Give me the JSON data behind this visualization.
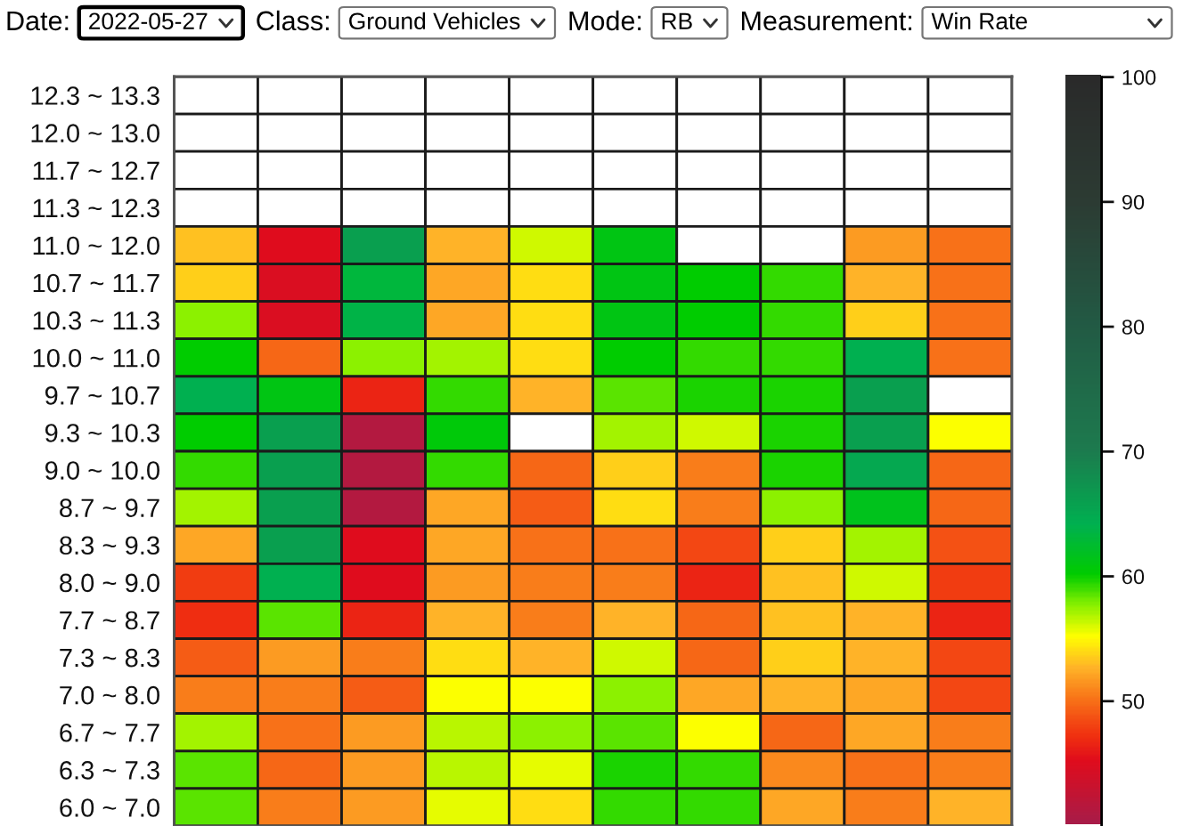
{
  "chart_data": {
    "type": "heatmap",
    "annotations": [
      "Date:",
      "2022-05-27",
      "Class:",
      "Ground Vehicles",
      "Mode:",
      "RB",
      "Measurement:",
      "Win Rate"
    ],
    "categories": [
      null,
      null,
      null,
      null,
      null,
      null,
      null,
      null,
      null,
      null
    ],
    "y_categories": [
      "12.3 ~ 13.3",
      "12.0 ~ 13.0",
      "11.7 ~ 12.7",
      "11.3 ~ 12.3",
      "11.0 ~ 12.0",
      "10.7 ~ 11.7",
      "10.3 ~ 11.3",
      "10.0 ~ 11.0",
      "9.7 ~ 10.7",
      "9.3 ~ 10.3",
      "9.0 ~ 10.0",
      "8.7 ~ 9.7",
      "8.3 ~ 9.3",
      "8.0 ~ 9.0",
      "7.7 ~ 8.7",
      "7.3 ~ 8.3",
      "7.0 ~ 8.0",
      "6.7 ~ 7.7",
      "6.3 ~ 7.3",
      "6.0 ~ 7.0"
    ],
    "cells": [
      [
        null,
        null,
        null,
        null,
        null,
        null,
        null,
        null,
        null,
        null
      ],
      [
        null,
        null,
        null,
        null,
        null,
        null,
        null,
        null,
        null,
        null
      ],
      [
        null,
        null,
        null,
        null,
        null,
        null,
        null,
        null,
        null,
        null
      ],
      [
        null,
        null,
        null,
        null,
        null,
        null,
        null,
        null,
        null,
        null
      ],
      [
        53,
        45,
        66,
        52.5,
        56,
        61,
        null,
        null,
        51.5,
        50
      ],
      [
        53.5,
        44.5,
        63,
        52,
        54,
        61,
        60,
        59,
        52.5,
        50
      ],
      [
        57.5,
        44.5,
        63.5,
        52,
        54,
        61,
        60,
        59,
        53.5,
        50
      ],
      [
        60,
        49.5,
        57.5,
        57,
        54,
        60,
        59,
        59,
        64,
        50
      ],
      [
        64,
        61,
        46.5,
        59,
        52.5,
        58.5,
        59.5,
        59.5,
        66,
        null
      ],
      [
        60,
        66,
        41,
        60.5,
        null,
        57,
        56,
        59.5,
        66,
        55
      ],
      [
        59,
        66,
        41,
        59,
        49.5,
        53.5,
        50.5,
        59.5,
        65,
        49.5
      ],
      [
        57,
        66,
        41,
        52,
        49,
        54,
        50.5,
        57.5,
        61.5,
        49.5
      ],
      [
        52,
        66,
        45,
        52,
        50,
        50,
        48,
        53.5,
        57,
        48.5
      ],
      [
        47.5,
        64,
        45,
        51.5,
        50.5,
        50.5,
        46.5,
        53,
        56,
        47.5
      ],
      [
        47,
        58.5,
        46.5,
        52.5,
        50.5,
        52.5,
        49.5,
        53,
        52.5,
        46.5
      ],
      [
        49,
        51.5,
        50.5,
        54,
        52.5,
        56,
        49.5,
        53.5,
        52.5,
        48
      ],
      [
        50.5,
        50.5,
        49,
        55,
        55,
        57.5,
        52,
        52.5,
        52,
        48
      ],
      [
        57,
        50,
        51.5,
        56.5,
        57.5,
        58.5,
        55,
        49.5,
        52,
        50.5
      ],
      [
        58.5,
        49.5,
        51.5,
        56.5,
        55.5,
        59.5,
        59,
        51,
        50,
        50.5
      ],
      [
        58.5,
        50.5,
        51.5,
        55.5,
        54,
        59,
        59,
        52,
        50.5,
        52.5
      ]
    ],
    "clim": [
      40,
      100
    ],
    "cticks": [
      50,
      60,
      70,
      80,
      90,
      100
    ]
  }
}
